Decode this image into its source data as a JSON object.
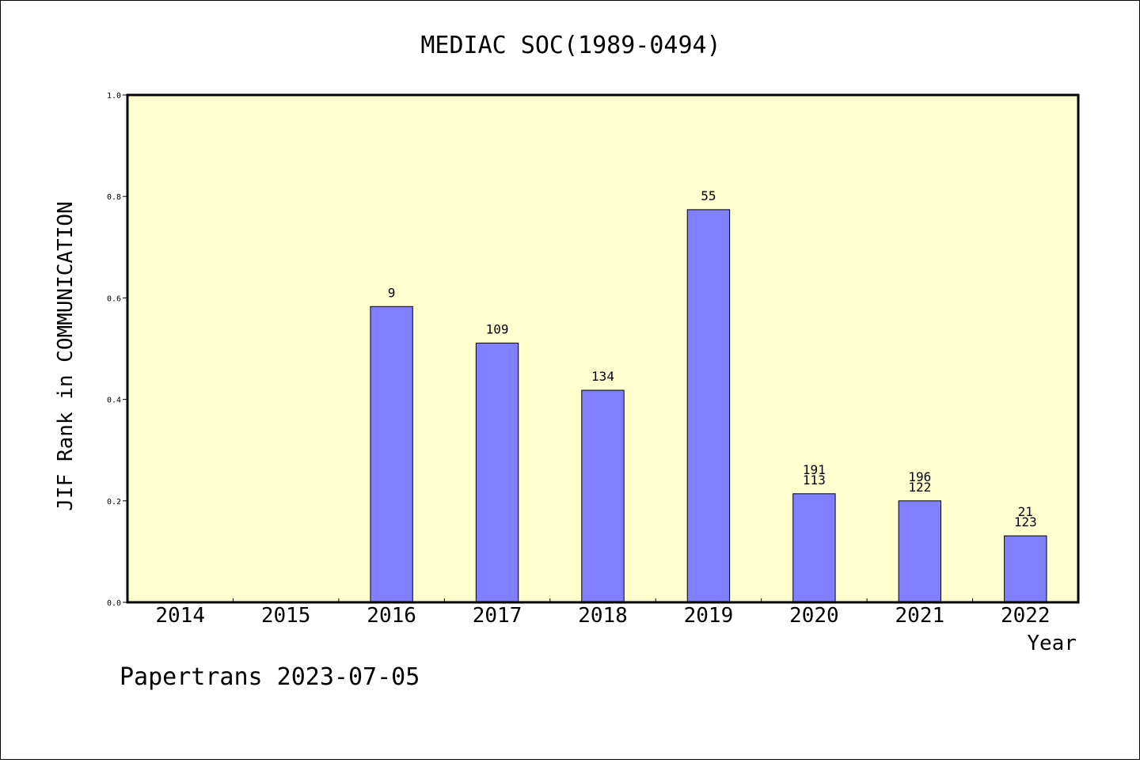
{
  "chart_data": {
    "type": "bar",
    "title": "MEDIAC SOC(1989-0494)",
    "xlabel": "Year",
    "ylabel": "JIF Rank in COMMUNICATION",
    "ylim": [
      0,
      1.0
    ],
    "yticks": [
      "0.0",
      "0.2",
      "0.4",
      "0.6",
      "0.8",
      "1.0"
    ],
    "categories": [
      "2014",
      "2015",
      "2016",
      "2017",
      "2018",
      "2019",
      "2020",
      "2021",
      "2022"
    ],
    "values": [
      null,
      null,
      0.583,
      0.511,
      0.418,
      0.774,
      0.214,
      0.2,
      0.131
    ],
    "bar_labels": [
      [],
      [],
      [
        "9"
      ],
      [
        "109"
      ],
      [
        "134"
      ],
      [
        "55"
      ],
      [
        "191",
        "113"
      ],
      [
        "196",
        "122"
      ],
      [
        "21",
        "123"
      ]
    ],
    "colors": {
      "plot_background": "#ffffd0",
      "bar_fill": "#8080ff",
      "bar_stroke": "#000000"
    },
    "grid": false
  },
  "footer": {
    "text": "Papertrans 2023-07-05"
  }
}
